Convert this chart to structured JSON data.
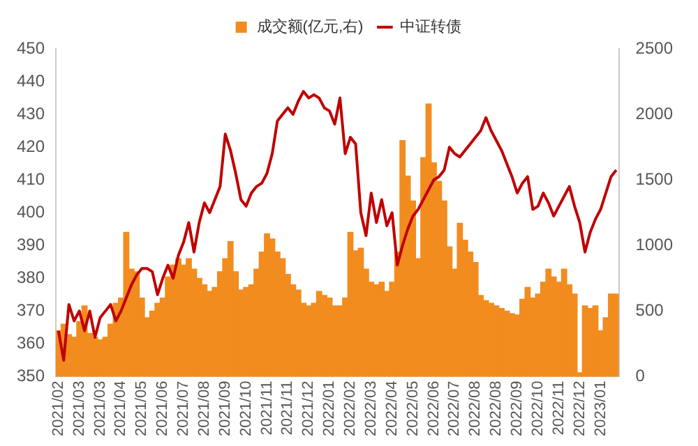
{
  "chart_data": {
    "type": "bar",
    "legend": "top",
    "grid": false,
    "categories": [
      "2021/02",
      null,
      null,
      null,
      "2021/03",
      null,
      null,
      null,
      "2021/03",
      null,
      null,
      null,
      "2021/04",
      null,
      null,
      null,
      "2021/05",
      null,
      null,
      null,
      "2021/06",
      null,
      null,
      null,
      "2021/07",
      null,
      null,
      null,
      "2021/08",
      null,
      null,
      null,
      "2021/09",
      null,
      null,
      null,
      "2021/10",
      null,
      null,
      null,
      "2021/11",
      null,
      null,
      null,
      "2021/11",
      null,
      null,
      null,
      "2021/12",
      null,
      null,
      null,
      "2022/01",
      null,
      null,
      null,
      "2022/02",
      null,
      null,
      null,
      "2022/03",
      null,
      null,
      null,
      "2022/04",
      null,
      null,
      null,
      "2022/05",
      null,
      null,
      null,
      "2022/06",
      null,
      null,
      null,
      "2022/07",
      null,
      null,
      null,
      "2022/08",
      null,
      null,
      null,
      "2022/08",
      null,
      null,
      null,
      "2022/09",
      null,
      null,
      null,
      "2022/10",
      null,
      null,
      null,
      "2022/11",
      null,
      null,
      null,
      "2022/12",
      null,
      null,
      null,
      "2023/01",
      null,
      null,
      null
    ],
    "series": [
      {
        "name": "成交额(亿元,右)",
        "axis": "y2",
        "color": "#f28c1e",
        "values": [
          350,
          400,
          320,
          300,
          420,
          540,
          330,
          300,
          280,
          300,
          400,
          560,
          600,
          1100,
          820,
          800,
          600,
          450,
          500,
          560,
          600,
          760,
          850,
          900,
          850,
          900,
          820,
          750,
          700,
          650,
          680,
          800,
          900,
          1030,
          800,
          660,
          680,
          700,
          820,
          950,
          1090,
          1050,
          950,
          900,
          780,
          700,
          660,
          560,
          540,
          560,
          650,
          620,
          600,
          540,
          540,
          600,
          1100,
          960,
          980,
          820,
          720,
          700,
          720,
          650,
          720,
          950,
          1800,
          1530,
          1340,
          900,
          1670,
          2080,
          1630,
          1490,
          1340,
          990,
          820,
          1170,
          1040,
          950,
          870,
          620,
          580,
          560,
          540,
          520,
          500,
          480,
          470,
          590,
          680,
          600,
          630,
          720,
          820,
          760,
          720,
          820,
          700,
          630,
          30,
          540,
          520,
          540,
          350,
          450,
          630,
          630
        ]
      },
      {
        "name": "中证转债",
        "type": "line",
        "color": "#c00000",
        "values": [
          364,
          355,
          372,
          367,
          370,
          364,
          370,
          362,
          368,
          370,
          372,
          367,
          370,
          374,
          378,
          381,
          383,
          383,
          382,
          375,
          380,
          384,
          380,
          387,
          391,
          397,
          388,
          397,
          403,
          400,
          404,
          408,
          424,
          419,
          412,
          404,
          402,
          406,
          408,
          409,
          412,
          418,
          428,
          430,
          432,
          430,
          434,
          437,
          435,
          436,
          435,
          432,
          431,
          427,
          435,
          418,
          423,
          421,
          400,
          393,
          406,
          397,
          404,
          396,
          400,
          384,
          390,
          395,
          399,
          401,
          404,
          407,
          410,
          411,
          413,
          420,
          418,
          417,
          419,
          421,
          423,
          425,
          429,
          425,
          422,
          419,
          415,
          411,
          406,
          409,
          411,
          401,
          402,
          406,
          403,
          399,
          402,
          405,
          408,
          402,
          397,
          388,
          394,
          398,
          401,
          406,
          411,
          413
        ]
      }
    ],
    "ylim": [
      350,
      450
    ],
    "yticks": [
      350,
      360,
      370,
      380,
      390,
      400,
      410,
      420,
      430,
      440,
      450
    ],
    "y2lim": [
      0,
      2500
    ],
    "y2ticks": [
      0,
      500,
      1000,
      1500,
      2000,
      2500
    ]
  }
}
